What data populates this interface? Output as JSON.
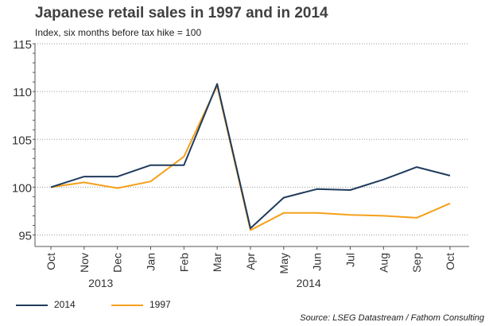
{
  "title": "Japanese retail sales in 1997 and in 2014",
  "subtitle": "Index, six months before tax hike = 100",
  "source": "Source: LSEG Datastream / Fathom Consulting",
  "colors": {
    "series_2014": "#1f3b5c",
    "series_1997": "#f5a01a",
    "grid": "#9a9a9a",
    "axis": "#555555",
    "text": "#222222"
  },
  "chart_data": {
    "type": "line",
    "x": [
      "Oct",
      "Nov",
      "Dec",
      "Jan",
      "Feb",
      "Mar",
      "Apr",
      "May",
      "Jun",
      "Jul",
      "Aug",
      "Sep",
      "Oct"
    ],
    "year_labels": [
      {
        "label": "2013",
        "at_index": 1.5
      },
      {
        "label": "2014",
        "at_index": 7.75
      }
    ],
    "ylim": [
      95,
      115
    ],
    "yticks": [
      95,
      100,
      105,
      110,
      115
    ],
    "grid": "horizontal dotted",
    "legend_position": "bottom-left",
    "series": [
      {
        "name": "2014",
        "color": "#1f3b5c",
        "values": [
          100.0,
          101.1,
          101.1,
          102.3,
          102.3,
          110.8,
          95.7,
          98.9,
          99.8,
          99.7,
          100.8,
          102.1,
          101.2
        ]
      },
      {
        "name": "1997",
        "color": "#f5a01a",
        "values": [
          100.0,
          100.5,
          99.9,
          100.6,
          103.2,
          110.6,
          95.5,
          97.3,
          97.3,
          97.1,
          97.0,
          96.8,
          98.3
        ]
      }
    ]
  }
}
